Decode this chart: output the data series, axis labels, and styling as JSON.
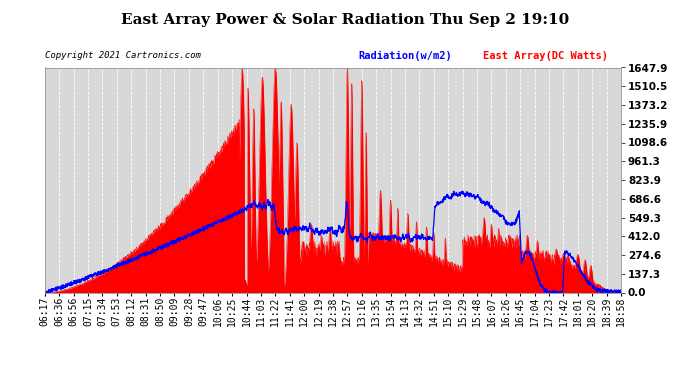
{
  "title": "East Array Power & Solar Radiation Thu Sep 2 19:10",
  "copyright": "Copyright 2021 Cartronics.com",
  "legend_radiation": "Radiation(w/m2)",
  "legend_east": "East Array(DC Watts)",
  "ylabel_right_ticks": [
    0.0,
    137.3,
    274.6,
    412.0,
    549.3,
    686.6,
    823.9,
    961.3,
    1098.6,
    1235.9,
    1373.2,
    1510.5,
    1647.9
  ],
  "ymax": 1647.9,
  "ymin": 0.0,
  "bg_color": "#ffffff",
  "plot_bg_color": "#d8d8d8",
  "grid_color": "#ffffff",
  "fill_color": "#ff0000",
  "line_color_radiation": "#0000ff",
  "title_fontsize": 11,
  "tick_fontsize": 7,
  "x_labels": [
    "06:17",
    "06:36",
    "06:56",
    "07:15",
    "07:34",
    "07:53",
    "08:12",
    "08:31",
    "08:50",
    "09:09",
    "09:28",
    "09:47",
    "10:06",
    "10:25",
    "10:44",
    "11:03",
    "11:22",
    "11:41",
    "12:00",
    "12:19",
    "12:38",
    "12:57",
    "13:16",
    "13:35",
    "13:54",
    "14:13",
    "14:32",
    "14:51",
    "15:10",
    "15:29",
    "15:48",
    "16:07",
    "16:26",
    "16:45",
    "17:04",
    "17:23",
    "17:42",
    "18:01",
    "18:20",
    "18:39",
    "18:58"
  ]
}
